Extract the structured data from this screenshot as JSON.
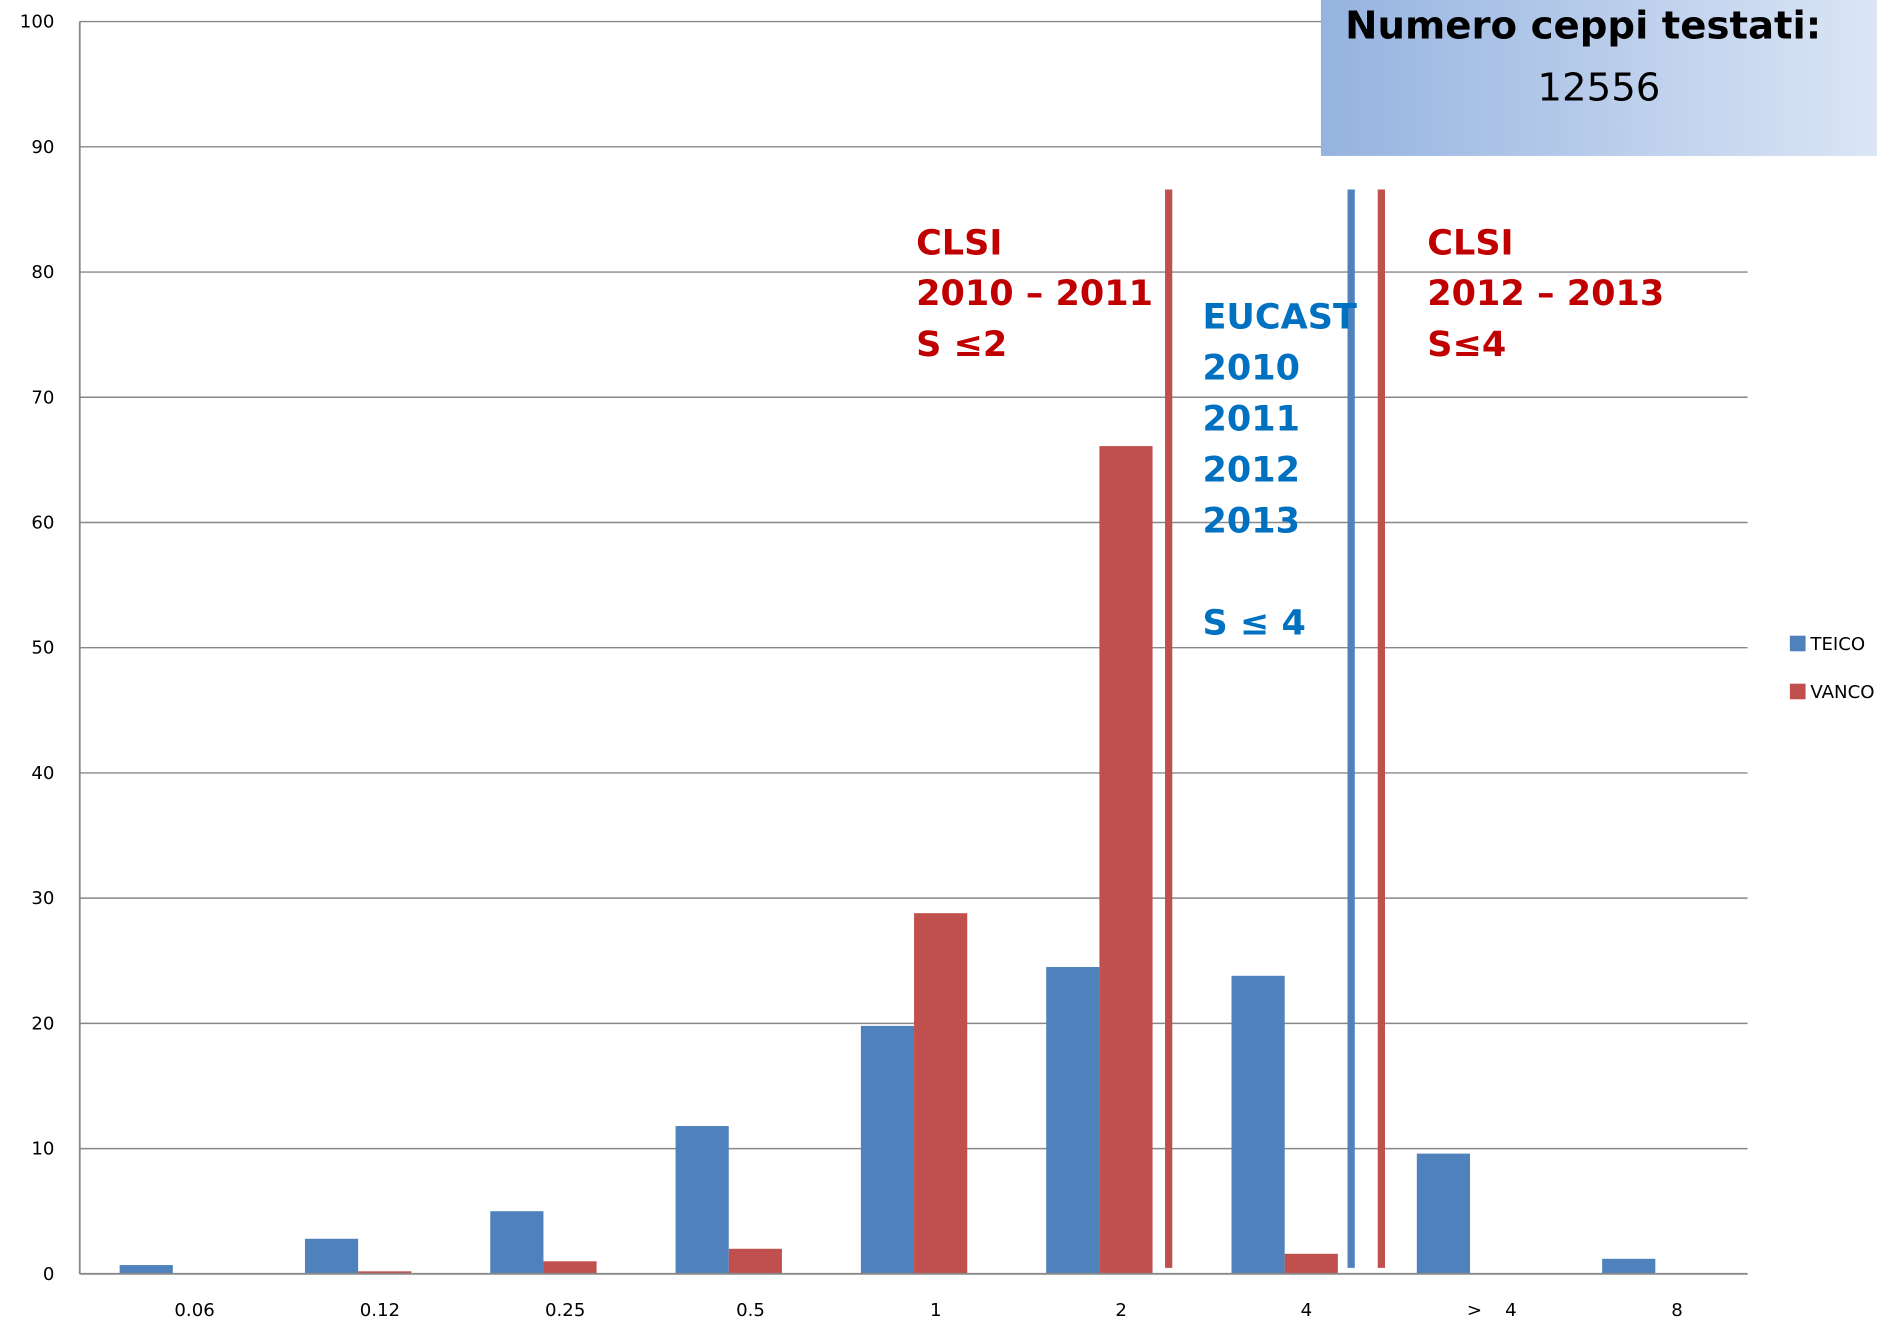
{
  "chart_data": {
    "type": "bar",
    "categories": [
      "0.06",
      "0.12",
      "0.25",
      "0.5",
      "1",
      "2",
      "4",
      ">    4",
      "8"
    ],
    "series": [
      {
        "name": "TEICO",
        "color": "#4f81bd",
        "values": [
          0.7,
          2.8,
          5.0,
          11.8,
          19.8,
          24.5,
          23.8,
          9.6,
          1.2
        ]
      },
      {
        "name": "VANCO",
        "color": "#c0504d",
        "values": [
          0,
          0.2,
          1.0,
          2.0,
          28.8,
          66.1,
          1.6,
          0,
          0
        ]
      }
    ],
    "ylim": [
      0,
      100
    ],
    "yticks": [
      0,
      10,
      20,
      30,
      40,
      50,
      60,
      70,
      80,
      90,
      100
    ],
    "grid": true,
    "legend": "right",
    "annotations": [
      {
        "color": "#c00000",
        "lines": [
          "CLSI",
          "2010 – 2011",
          "S ≤2"
        ]
      },
      {
        "color": "#0070c0",
        "lines": [
          "EUCAST",
          "2010",
          "2011",
          "2012",
          "2013",
          "",
          "S ≤ 4"
        ]
      },
      {
        "color": "#c00000",
        "lines": [
          "CLSI",
          "2012 – 2013",
          "S≤4"
        ]
      }
    ],
    "info_box": {
      "title": "Numero ceppi testati:",
      "value": "12556"
    }
  }
}
